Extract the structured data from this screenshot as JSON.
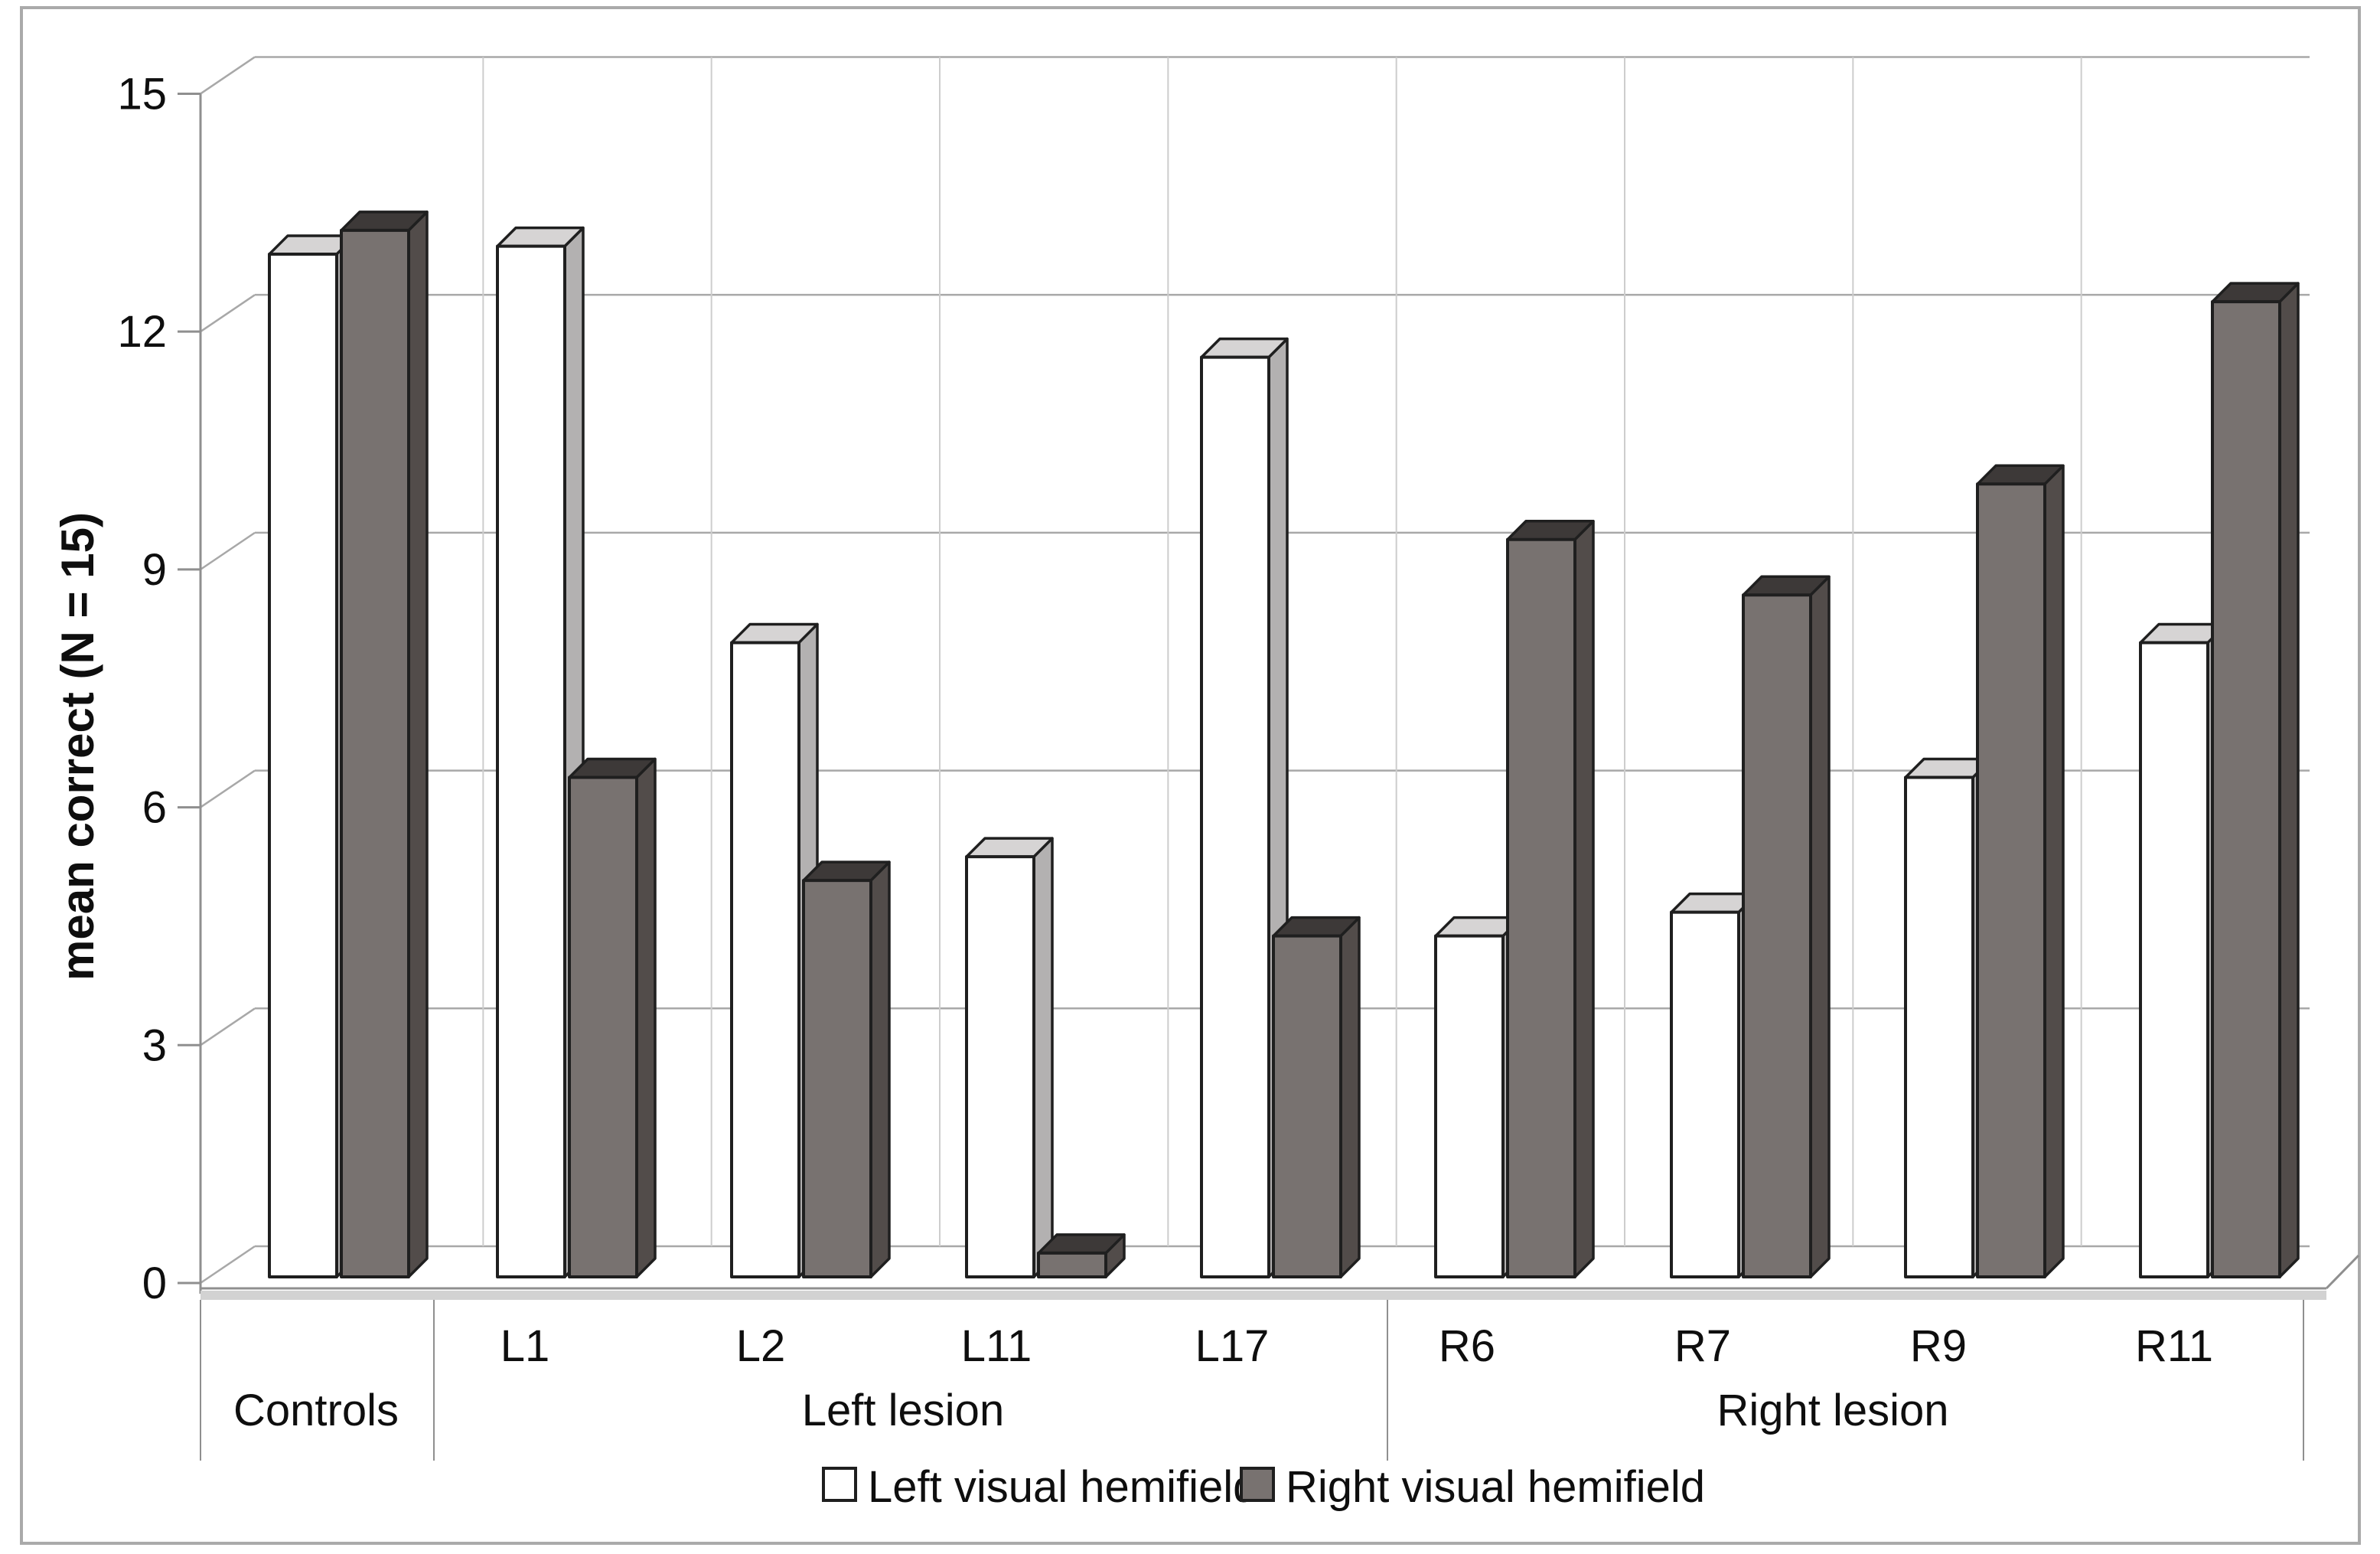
{
  "figure": {
    "border_color": "#aaaaaa",
    "y_tick_labels": [
      "0",
      "3",
      "6",
      "9",
      "12",
      "15"
    ],
    "sub_labels": [
      "L1",
      "L2",
      "L11",
      "L17",
      "R6",
      "R7",
      "R9",
      "R11"
    ],
    "group_labels": [
      "Controls",
      "Left lesion",
      "Right lesion"
    ],
    "colors": {
      "white_bar_front": "#ffffff",
      "white_bar_top": "#d6d4d4",
      "white_bar_side": "#b3b1b1",
      "dark_bar_front": "#787270",
      "dark_bar_top": "#3d3938",
      "dark_bar_side": "#524c4a",
      "bar_outline": "#1f1f1f",
      "gridline": "#a8a8a8",
      "axis_line": "#8f8f8f",
      "floor_band": "#d2d2d2",
      "category_divider": "#cdcdcd",
      "text": "#0e0e0e"
    }
  },
  "chart_data": {
    "type": "bar",
    "style": "3d-column",
    "title": "",
    "ylabel": "mean correct (N = 15)",
    "ylim": [
      0,
      15
    ],
    "yticks": [
      0,
      3,
      6,
      9,
      12,
      15
    ],
    "grid": "horizontal",
    "legend_position": "bottom",
    "categories": [
      "Controls",
      "L1",
      "L2",
      "L11",
      "L17",
      "R6",
      "R7",
      "R9",
      "R11"
    ],
    "category_groups": [
      "Controls",
      "Left lesion",
      "Left lesion",
      "Left lesion",
      "Left lesion",
      "Right lesion",
      "Right lesion",
      "Right lesion",
      "Right lesion"
    ],
    "series": [
      {
        "name": "Left visual hemifield",
        "color": "#ffffff",
        "values": [
          12.9,
          13.0,
          8.0,
          5.3,
          11.6,
          4.3,
          4.6,
          6.3,
          8.0
        ]
      },
      {
        "name": "Right visual hemifield",
        "color": "#787270",
        "values": [
          13.2,
          6.3,
          5.0,
          0.3,
          4.3,
          9.3,
          8.6,
          10.0,
          12.3
        ]
      }
    ]
  }
}
